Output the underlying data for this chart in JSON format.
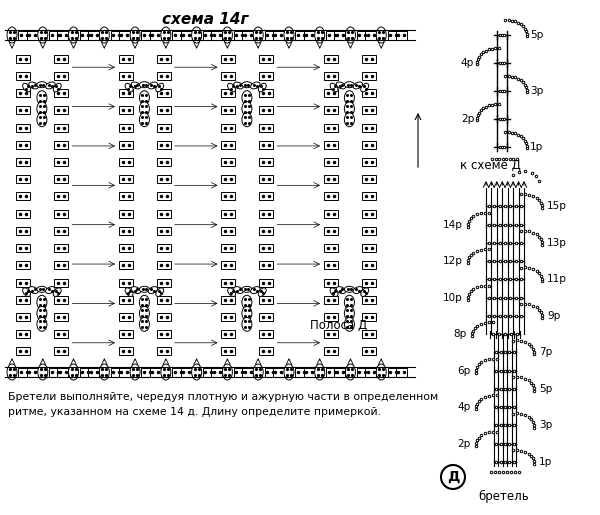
{
  "title": "схема 14г",
  "subtitle_right_top": "к схеме Д",
  "label_polosa": "Полоса Д",
  "label_bretel": "бретель",
  "label_d": "Д",
  "bottom_text_line1": "Бретели выполняйте, чередуя плотную и ажурную части в определенном",
  "bottom_text_line2": "ритме, указанном на схеме 14 д. Длину определите примеркой.",
  "right_top_rows_right": [
    "5р",
    "3р",
    "1р"
  ],
  "right_top_rows_left": [
    "4р",
    "2р"
  ],
  "right_bottom_rows_right": [
    "15р",
    "13р",
    "11р",
    "9р",
    "7р",
    "5р",
    "3р",
    "1р"
  ],
  "right_bottom_rows_left": [
    "14р",
    "12р",
    "10р",
    "8р",
    "6р",
    "4р",
    "2р"
  ],
  "bg_color": "#ffffff",
  "fg_color": "#000000"
}
